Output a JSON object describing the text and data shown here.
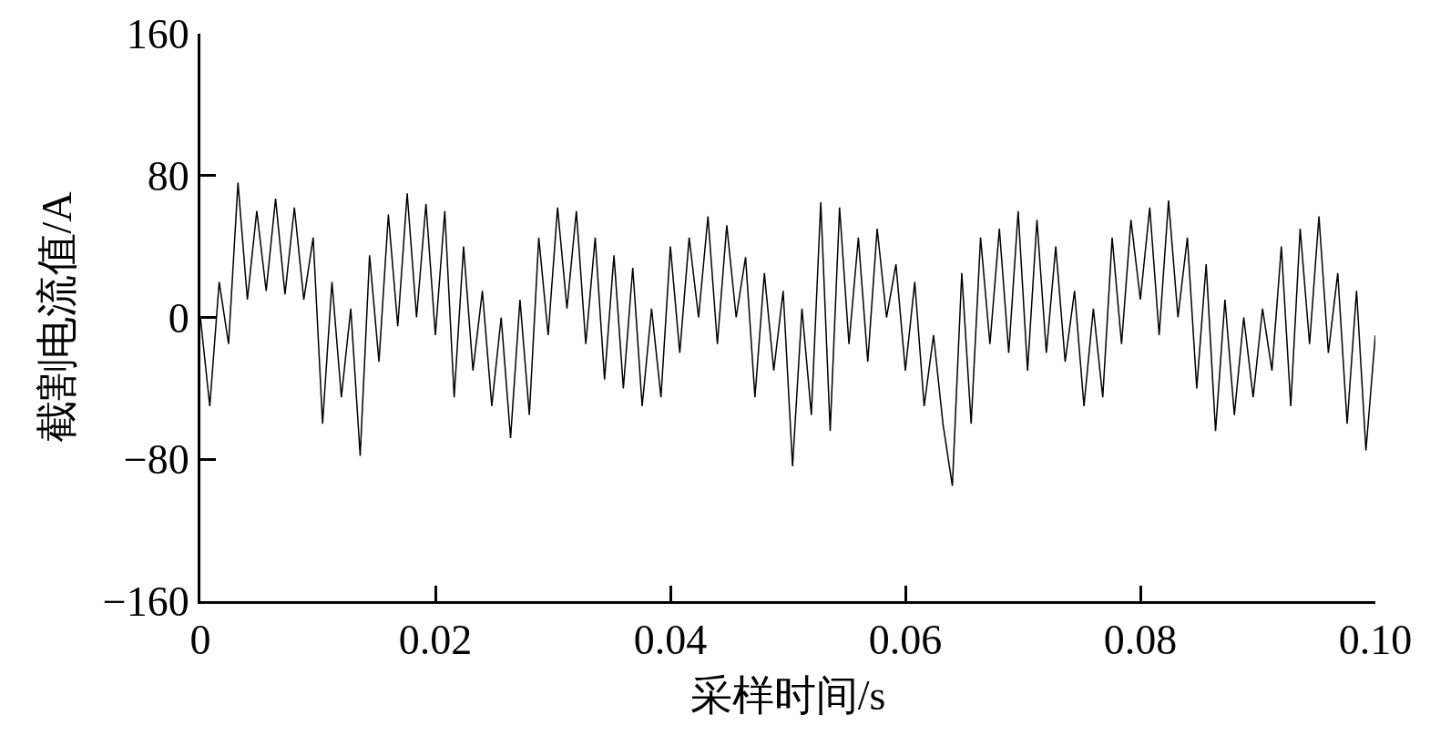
{
  "chart_data": {
    "type": "line",
    "xlabel": "采样时间/s",
    "ylabel": "截割电流值/A",
    "x": [
      0,
      0.0008,
      0.0016,
      0.0024,
      0.0032,
      0.004,
      0.0048,
      0.0056,
      0.0064,
      0.0072,
      0.008,
      0.0088,
      0.0096,
      0.0104,
      0.0112,
      0.012,
      0.0128,
      0.0136,
      0.0144,
      0.0152,
      0.016,
      0.0168,
      0.0176,
      0.0184,
      0.0192,
      0.02,
      0.0208,
      0.0216,
      0.0224,
      0.0232,
      0.024,
      0.0248,
      0.0256,
      0.0264,
      0.0272,
      0.028,
      0.0288,
      0.0296,
      0.0304,
      0.0312,
      0.032,
      0.0328,
      0.0336,
      0.0344,
      0.0352,
      0.036,
      0.0368,
      0.0376,
      0.0384,
      0.0392,
      0.04,
      0.0408,
      0.0416,
      0.0424,
      0.0432,
      0.044,
      0.0448,
      0.0456,
      0.0464,
      0.0472,
      0.048,
      0.0488,
      0.0496,
      0.0504,
      0.0512,
      0.052,
      0.0528,
      0.0536,
      0.0544,
      0.0552,
      0.056,
      0.0568,
      0.0576,
      0.0584,
      0.0592,
      0.06,
      0.0608,
      0.0616,
      0.0624,
      0.0632,
      0.064,
      0.0648,
      0.0656,
      0.0664,
      0.0672,
      0.068,
      0.0688,
      0.0696,
      0.0704,
      0.0712,
      0.072,
      0.0728,
      0.0736,
      0.0744,
      0.0752,
      0.076,
      0.0768,
      0.0776,
      0.0784,
      0.0792,
      0.08,
      0.0808,
      0.0816,
      0.0824,
      0.0832,
      0.084,
      0.0848,
      0.0856,
      0.0864,
      0.0872,
      0.088,
      0.0888,
      0.0896,
      0.0904,
      0.0912,
      0.092,
      0.0928,
      0.0936,
      0.0944,
      0.0952,
      0.096,
      0.0968,
      0.0976,
      0.0984,
      0.0992,
      0.1
    ],
    "series": [
      {
        "color": "#000000",
        "values": [
          0,
          -50,
          20,
          -15,
          76,
          10,
          60,
          15,
          67,
          13,
          62,
          10,
          45,
          -60,
          20,
          -45,
          5,
          -78,
          35,
          -25,
          58,
          -5,
          70,
          0,
          64,
          -10,
          60,
          -45,
          40,
          -30,
          15,
          -50,
          0,
          -68,
          10,
          -55,
          45,
          -10,
          62,
          5,
          60,
          -15,
          45,
          -35,
          35,
          -40,
          28,
          -50,
          5,
          -45,
          40,
          -20,
          45,
          0,
          57,
          -15,
          52,
          0,
          34,
          -45,
          25,
          -30,
          15,
          -84,
          5,
          -55,
          65,
          -64,
          62,
          -15,
          45,
          -25,
          50,
          0,
          30,
          -30,
          20,
          -50,
          -10,
          -60,
          -95,
          25,
          -60,
          45,
          -15,
          50,
          -20,
          60,
          -30,
          55,
          -20,
          40,
          -25,
          15,
          -50,
          5,
          -45,
          45,
          -15,
          55,
          10,
          62,
          -10,
          66,
          0,
          45,
          -40,
          30,
          -64,
          10,
          -55,
          0,
          -45,
          5,
          -30,
          40,
          -50,
          50,
          -15,
          57,
          -20,
          25,
          -60,
          15,
          -75,
          -10
        ]
      }
    ],
    "xlim": [
      0,
      0.1
    ],
    "xticks": [
      0,
      0.02,
      0.04,
      0.06,
      0.08,
      {
        "value": 0.1,
        "label": "0.10"
      }
    ],
    "ylim": [
      -160,
      160
    ],
    "yticks": [
      {
        "value": -160,
        "label": "−160"
      },
      {
        "value": -80,
        "label": "−80"
      },
      0,
      80,
      160
    ],
    "line_style": "solid"
  }
}
